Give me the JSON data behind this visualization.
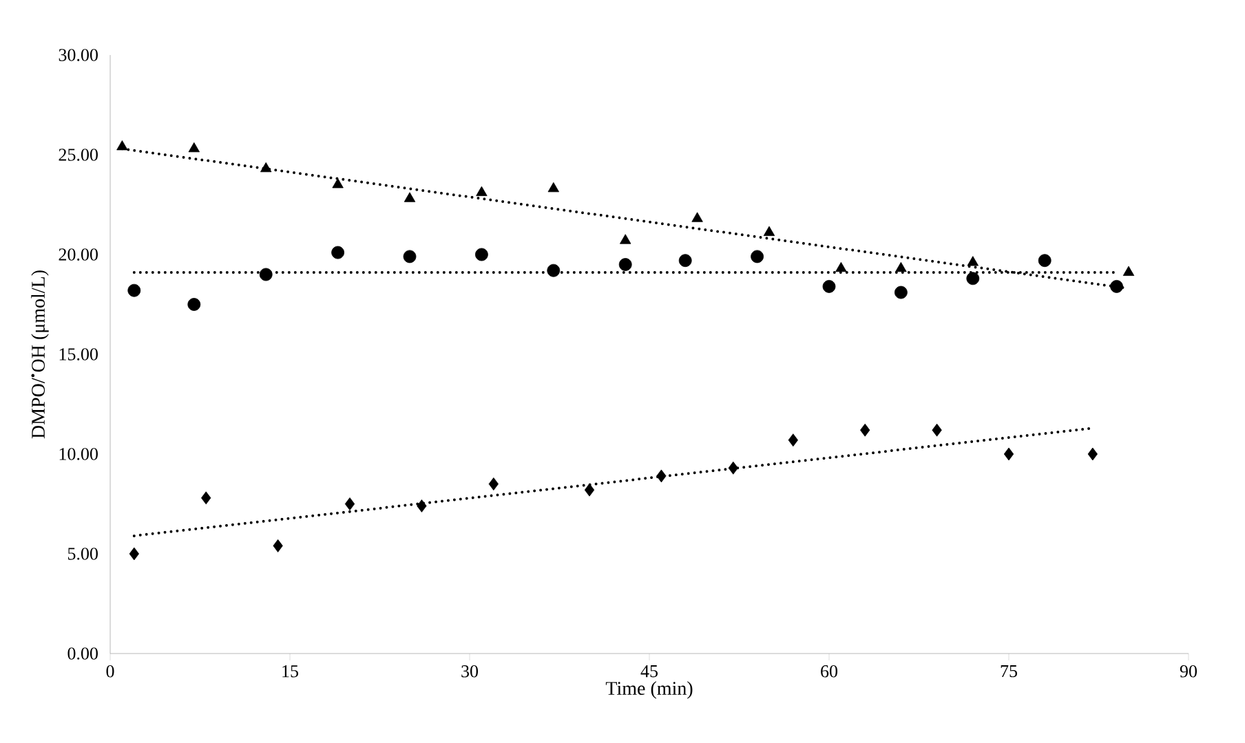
{
  "chart_data": {
    "type": "scatter",
    "xlabel": "Time (min)",
    "ylabel": "DMPO/$^{•}$OH (μmol/L)",
    "xlim": [
      0,
      90
    ],
    "xticks": [
      0,
      15,
      30,
      45,
      60,
      75,
      90
    ],
    "ylim": [
      0,
      30
    ],
    "yticks": [
      {
        "value": 0,
        "label": "0.00"
      },
      {
        "value": 5,
        "label": "5.00"
      },
      {
        "value": 10,
        "label": "10.00"
      },
      {
        "value": 15,
        "label": "15.00"
      },
      {
        "value": 20,
        "label": "20.00"
      },
      {
        "value": 25,
        "label": "25.00"
      },
      {
        "value": 30,
        "label": "30.00"
      }
    ],
    "grid": false,
    "series": [
      {
        "type": "scatter",
        "marker": "triangle",
        "color": "#000000",
        "x": [
          1,
          7,
          13,
          19,
          25,
          31,
          37,
          43,
          49,
          55,
          61,
          66,
          72,
          85
        ],
        "values": [
          25.4,
          25.3,
          24.3,
          23.5,
          22.8,
          23.1,
          23.3,
          20.7,
          21.8,
          21.1,
          19.3,
          19.3,
          19.6,
          19.1
        ]
      },
      {
        "type": "scatter",
        "marker": "circle",
        "color": "#000000",
        "x": [
          2,
          7,
          13,
          19,
          25,
          31,
          37,
          43,
          48,
          54,
          60,
          66,
          72,
          78,
          84
        ],
        "values": [
          18.2,
          17.5,
          19.0,
          20.1,
          19.9,
          20.0,
          19.2,
          19.5,
          19.7,
          19.9,
          18.4,
          18.1,
          18.8,
          19.7,
          18.4
        ]
      },
      {
        "type": "scatter",
        "marker": "diamond",
        "color": "#000000",
        "x": [
          2,
          8,
          14,
          20,
          26,
          32,
          40,
          46,
          52,
          57,
          63,
          69,
          75,
          82
        ],
        "values": [
          5.0,
          7.8,
          5.4,
          7.5,
          7.4,
          8.5,
          8.2,
          8.9,
          9.3,
          10.7,
          11.2,
          11.2,
          10.0,
          10.0
        ]
      },
      {
        "type": "line",
        "line_style": "dotted",
        "color": "#000000",
        "x": [
          1,
          85
        ],
        "values": [
          25.3,
          18.3
        ]
      },
      {
        "type": "line",
        "line_style": "dotted",
        "color": "#000000",
        "x": [
          2,
          84
        ],
        "values": [
          19.1,
          19.1
        ]
      },
      {
        "type": "line",
        "line_style": "dotted",
        "color": "#000000",
        "x": [
          2,
          82
        ],
        "values": [
          5.9,
          11.3
        ]
      }
    ]
  }
}
